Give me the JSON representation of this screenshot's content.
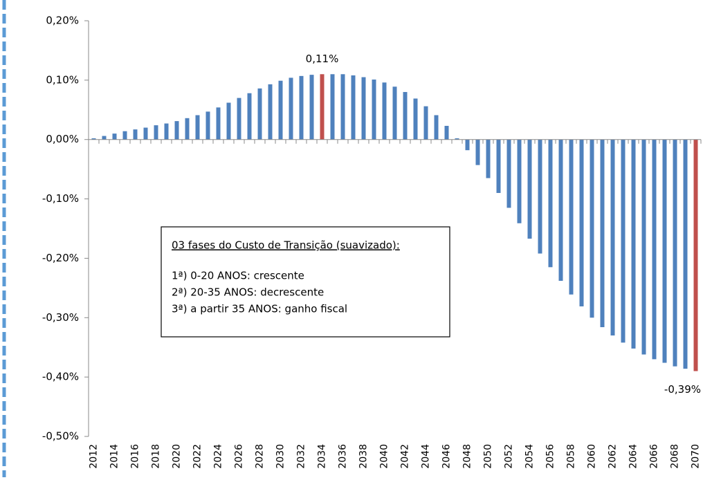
{
  "chart_data": {
    "type": "bar",
    "categories": [
      "2012",
      null,
      "2014",
      null,
      "2016",
      null,
      "2018",
      null,
      "2020",
      null,
      "2022",
      null,
      "2024",
      null,
      "2026",
      null,
      "2028",
      null,
      "2030",
      null,
      "2032",
      null,
      "2034",
      null,
      "2036",
      null,
      "2038",
      null,
      "2040",
      null,
      "2042",
      null,
      "2044",
      null,
      "2046",
      null,
      "2048",
      null,
      "2050",
      null,
      "2052",
      null,
      "2054",
      null,
      "2056",
      null,
      "2058",
      null,
      "2060",
      null,
      "2062",
      null,
      "2064",
      null,
      "2066",
      null,
      "2068",
      null,
      "2070"
    ],
    "values": [
      0.002,
      0.006,
      0.01,
      0.014,
      0.017,
      0.02,
      0.024,
      0.027,
      0.031,
      0.036,
      0.041,
      0.047,
      0.054,
      0.062,
      0.07,
      0.078,
      0.086,
      0.093,
      0.099,
      0.104,
      0.107,
      0.109,
      0.11,
      0.11,
      0.11,
      0.108,
      0.105,
      0.101,
      0.096,
      0.089,
      0.08,
      0.069,
      0.056,
      0.041,
      0.023,
      0.002,
      -0.018,
      -0.043,
      -0.065,
      -0.09,
      -0.115,
      -0.141,
      -0.167,
      -0.192,
      -0.215,
      -0.238,
      -0.261,
      -0.281,
      -0.3,
      -0.316,
      -0.33,
      -0.342,
      -0.352,
      -0.362,
      -0.37,
      -0.376,
      -0.382,
      -0.386,
      -0.39
    ],
    "value_labels": [
      null,
      null,
      null,
      null,
      null,
      null,
      null,
      null,
      null,
      null,
      null,
      null,
      null,
      null,
      null,
      null,
      null,
      null,
      null,
      null,
      null,
      null,
      "0,11%",
      null,
      null,
      null,
      null,
      null,
      null,
      null,
      null,
      null,
      null,
      null,
      null,
      null,
      null,
      null,
      null,
      null,
      null,
      null,
      null,
      null,
      null,
      null,
      null,
      null,
      null,
      null,
      null,
      null,
      null,
      null,
      null,
      null,
      null,
      null,
      "-0,39%"
    ],
    "color": "#4f81bd",
    "highlight_color": "#c0504d",
    "ylim": [
      -0.5,
      0.2
    ],
    "yticks": [
      {
        "value": 0.2,
        "label": "0,20%"
      },
      {
        "value": 0.1,
        "label": "0,10%"
      },
      {
        "value": 0,
        "label": "0,00%"
      },
      {
        "value": -0.1,
        "label": "-0,10%"
      },
      {
        "value": -0.2,
        "label": "-0,20%"
      },
      {
        "value": -0.3,
        "label": "-0,30%"
      },
      {
        "value": -0.4,
        "label": "-0,40%"
      },
      {
        "value": -0.5,
        "label": "-0,50%"
      }
    ],
    "annotation": {
      "title": "03 fases do Custo de Transição (suavizado):",
      "lines": [
        "1ª) 0-20 ANOS: crescente",
        "2ª) 20-35 ANOS: decrescente",
        "3ª) a partir 35 ANOS: ganho fiscal"
      ]
    }
  }
}
